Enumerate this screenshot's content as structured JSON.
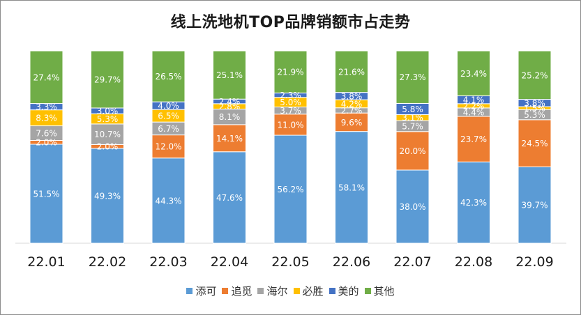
{
  "chart_data": {
    "type": "stacked_bar",
    "title": "线上洗地机TOP品牌销额市占走势",
    "categories": [
      "22.01",
      "22.02",
      "22.03",
      "22.04",
      "22.05",
      "22.06",
      "22.07",
      "22.08",
      "22.09"
    ],
    "series": [
      {
        "name": "添可",
        "color": "#5b9bd5",
        "values": [
          51.5,
          49.3,
          44.3,
          47.6,
          56.2,
          58.1,
          38.0,
          42.3,
          39.7
        ]
      },
      {
        "name": "追觅",
        "color": "#ed7d31",
        "values": [
          2.0,
          2.0,
          12.0,
          14.1,
          11.0,
          9.6,
          20.0,
          23.7,
          24.5
        ]
      },
      {
        "name": "海尔",
        "color": "#a5a5a5",
        "values": [
          7.6,
          10.7,
          6.7,
          8.1,
          3.7,
          2.7,
          5.7,
          4.4,
          5.3
        ]
      },
      {
        "name": "必胜",
        "color": "#ffc000",
        "values": [
          8.3,
          5.3,
          6.5,
          2.8,
          5.0,
          4.2,
          3.1,
          2.2,
          1.5
        ]
      },
      {
        "name": "美的",
        "color": "#4472c4",
        "values": [
          3.3,
          3.0,
          4.0,
          2.4,
          2.3,
          3.8,
          5.8,
          4.1,
          3.8
        ]
      },
      {
        "name": "其他",
        "color": "#70ad47",
        "values": [
          27.4,
          29.7,
          26.5,
          25.1,
          21.9,
          21.6,
          27.3,
          23.4,
          25.2
        ]
      }
    ],
    "value_suffix": "%",
    "ylim": [
      0,
      100
    ],
    "legend_position": "bottom"
  }
}
